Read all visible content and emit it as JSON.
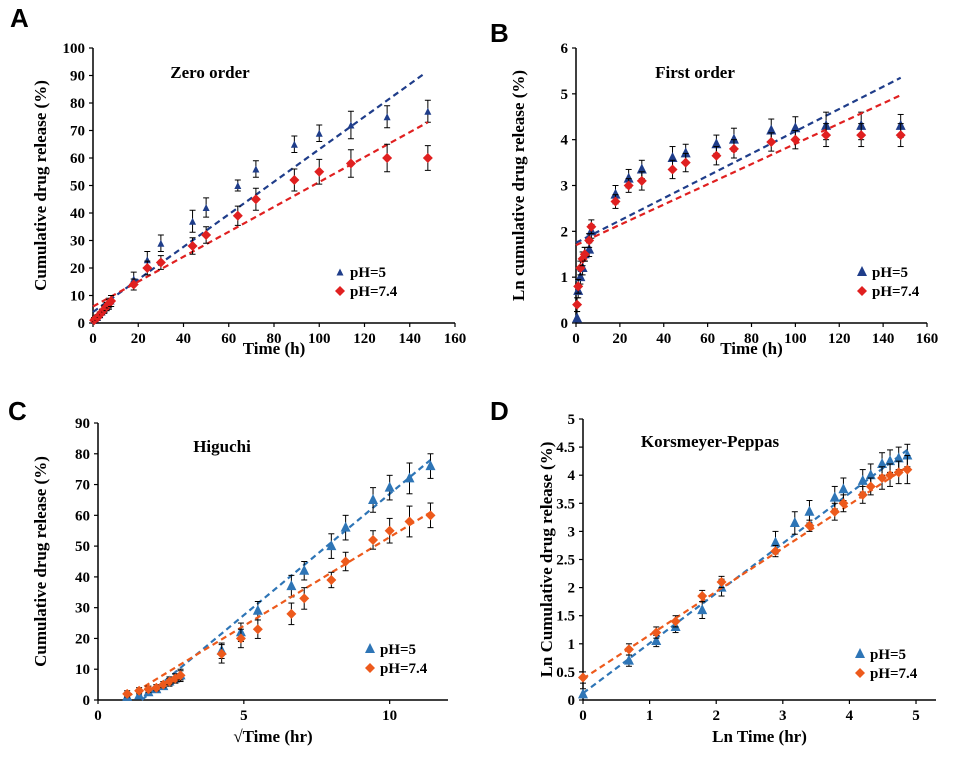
{
  "chart_data": [
    {
      "panel": "A",
      "type": "scatter",
      "title": "Zero order",
      "xlabel": "Time (h)",
      "ylabel": "Cumulative  drug release  (%)",
      "xlim": [
        0,
        160
      ],
      "ylim": [
        0,
        100
      ],
      "xticks": [
        0,
        20,
        40,
        60,
        80,
        100,
        120,
        140,
        160
      ],
      "yticks": [
        0,
        10,
        20,
        30,
        40,
        50,
        60,
        70,
        80,
        90,
        100
      ],
      "legend": "right",
      "series": [
        {
          "name": "pH=5",
          "color": "#1f3d8a",
          "marker": "triangle-small",
          "x": [
            0.5,
            1,
            2,
            3,
            4,
            5,
            6,
            7,
            8,
            18,
            24,
            30,
            44,
            50,
            64,
            72,
            89,
            100,
            114,
            130,
            148
          ],
          "y": [
            1,
            1.5,
            2,
            3,
            4,
            5,
            6,
            7,
            8,
            16,
            23,
            29,
            37,
            42,
            50,
            56,
            65,
            69,
            72,
            75,
            77
          ],
          "err": [
            1,
            1,
            1,
            1,
            1,
            1.5,
            1.5,
            2,
            2,
            2.5,
            3,
            3,
            4,
            3.5,
            2,
            3,
            3,
            3,
            5,
            4,
            4
          ],
          "fit": {
            "x0": 0,
            "y0": 4,
            "x1": 147,
            "y1": 91
          }
        },
        {
          "name": "pH=7.4",
          "color": "#e02020",
          "marker": "diamond",
          "x": [
            0.5,
            1,
            2,
            3,
            4,
            5,
            6,
            7,
            8,
            18,
            24,
            30,
            44,
            50,
            64,
            72,
            89,
            100,
            114,
            130,
            148
          ],
          "y": [
            1,
            1.5,
            2,
            3,
            4,
            5,
            6,
            7,
            8,
            14,
            20,
            22,
            28,
            32,
            39,
            45,
            52,
            55,
            58,
            60,
            60
          ],
          "err": [
            1,
            1,
            1,
            1,
            1,
            1,
            1.5,
            1.5,
            2,
            2,
            2.5,
            2.5,
            3,
            3,
            3.5,
            4,
            4,
            4.5,
            5,
            5,
            4.5
          ],
          "fit": {
            "x0": 0,
            "y0": 6,
            "x1": 148,
            "y1": 73
          }
        }
      ]
    },
    {
      "panel": "B",
      "type": "scatter",
      "title": "First order",
      "xlabel": "Time (h)",
      "ylabel": "Ln cumulative drug  release  (%)",
      "xlim": [
        0,
        160
      ],
      "ylim": [
        0,
        6
      ],
      "xticks": [
        0,
        20,
        40,
        60,
        80,
        100,
        120,
        140,
        160
      ],
      "yticks": [
        0,
        1,
        2,
        3,
        4,
        5,
        6
      ],
      "legend": "right",
      "series": [
        {
          "name": "pH=5",
          "color": "#1f3d8a",
          "marker": "triangle",
          "x": [
            0.5,
            1,
            2,
            3,
            4,
            6,
            7,
            18,
            24,
            30,
            44,
            50,
            64,
            72,
            89,
            100,
            114,
            130,
            148
          ],
          "y": [
            0.1,
            0.7,
            1.0,
            1.2,
            1.5,
            1.6,
            2.0,
            2.8,
            3.15,
            3.35,
            3.6,
            3.7,
            3.9,
            4.0,
            4.2,
            4.25,
            4.3,
            4.3,
            4.3
          ],
          "err": [
            0.15,
            0.15,
            0.15,
            0.15,
            0.15,
            0.15,
            0.15,
            0.2,
            0.2,
            0.2,
            0.25,
            0.2,
            0.2,
            0.25,
            0.25,
            0.25,
            0.3,
            0.3,
            0.25
          ],
          "fit": {
            "x0": 0,
            "y0": 1.75,
            "x1": 148,
            "y1": 5.35
          }
        },
        {
          "name": "pH=7.4",
          "color": "#e02020",
          "marker": "diamond",
          "x": [
            0.5,
            1,
            2,
            3,
            4,
            6,
            7,
            18,
            24,
            30,
            44,
            50,
            64,
            72,
            89,
            100,
            114,
            130,
            148
          ],
          "y": [
            0.4,
            0.8,
            1.2,
            1.4,
            1.5,
            1.8,
            2.1,
            2.65,
            3.0,
            3.1,
            3.35,
            3.5,
            3.65,
            3.8,
            3.95,
            4.0,
            4.1,
            4.1,
            4.1
          ],
          "err": [
            0.15,
            0.15,
            0.15,
            0.15,
            0.15,
            0.15,
            0.15,
            0.15,
            0.15,
            0.2,
            0.2,
            0.2,
            0.2,
            0.2,
            0.2,
            0.2,
            0.25,
            0.25,
            0.25
          ],
          "fit": {
            "x0": 0,
            "y0": 1.7,
            "x1": 148,
            "y1": 4.97
          }
        }
      ]
    },
    {
      "panel": "C",
      "type": "scatter",
      "title": "Higuchi",
      "xlabel": "√Time (hr)",
      "ylabel": "Cumulative drug  release  (%)",
      "xlim": [
        0,
        12
      ],
      "ylim": [
        0,
        90
      ],
      "xticks": [
        0,
        5,
        10
      ],
      "yticks": [
        0,
        10,
        20,
        30,
        40,
        50,
        60,
        70,
        80,
        90
      ],
      "legend": "right",
      "series": [
        {
          "name": "pH=5",
          "color": "#2e75b6",
          "marker": "triangle",
          "x": [
            1.0,
            1.41,
            1.73,
            2.0,
            2.24,
            2.45,
            2.65,
            2.83,
            4.24,
            4.9,
            5.48,
            6.63,
            7.07,
            8.0,
            8.49,
            9.43,
            10.0,
            10.68,
            11.4
          ],
          "y": [
            1,
            1.5,
            2.5,
            3.5,
            4.5,
            6,
            7,
            8,
            16,
            22,
            29,
            37,
            42,
            50,
            56,
            65,
            69,
            72,
            76
          ],
          "err": [
            1,
            1,
            1,
            1,
            1,
            1.5,
            1.5,
            2,
            2.5,
            3,
            3,
            3.5,
            3,
            4,
            4,
            4,
            4,
            5,
            4
          ],
          "fit": {
            "x0": 1.5,
            "y0": 0,
            "x1": 11.4,
            "y1": 78
          }
        },
        {
          "name": "pH=7.4",
          "color": "#ed5a1c",
          "marker": "diamond",
          "x": [
            1.0,
            1.41,
            1.73,
            2.0,
            2.24,
            2.45,
            2.65,
            2.83,
            4.24,
            4.9,
            5.48,
            6.63,
            7.07,
            8.0,
            8.49,
            9.43,
            10.0,
            10.68,
            11.4
          ],
          "y": [
            2,
            3,
            3.5,
            4,
            5,
            6,
            7,
            8,
            15,
            20,
            23,
            28,
            33,
            39,
            45,
            52,
            55,
            58,
            60
          ],
          "err": [
            1,
            1,
            1,
            1,
            1,
            1,
            1.5,
            1.5,
            3,
            3,
            3,
            3.5,
            3.5,
            2.5,
            3,
            3,
            4,
            5,
            4
          ],
          "fit": {
            "x0": 1.0,
            "y0": 1,
            "x1": 11.4,
            "y1": 61
          }
        }
      ]
    },
    {
      "panel": "D",
      "type": "scatter",
      "title": "Korsmeyer-Peppas",
      "xlabel": "Ln Time (hr)",
      "ylabel": "Ln Cumulative drug release (%)",
      "xlim": [
        0,
        5.3
      ],
      "ylim": [
        0,
        5
      ],
      "xticks": [
        0,
        1,
        2,
        3,
        4,
        5
      ],
      "yticks": [
        0,
        0.5,
        1,
        1.5,
        2,
        2.5,
        3,
        3.5,
        4,
        4.5,
        5
      ],
      "legend": "right",
      "series": [
        {
          "name": "pH=5",
          "color": "#2e75b6",
          "marker": "triangle",
          "x": [
            0,
            0.69,
            1.1,
            1.39,
            1.79,
            2.08,
            2.89,
            3.18,
            3.4,
            3.78,
            3.91,
            4.2,
            4.32,
            4.49,
            4.61,
            4.74,
            4.87
          ],
          "y": [
            0.1,
            0.7,
            1.05,
            1.3,
            1.6,
            2.0,
            2.8,
            3.15,
            3.35,
            3.6,
            3.75,
            3.9,
            4.0,
            4.2,
            4.25,
            4.3,
            4.35
          ],
          "err": [
            0.1,
            0.1,
            0.1,
            0.1,
            0.15,
            0.15,
            0.2,
            0.2,
            0.2,
            0.2,
            0.2,
            0.2,
            0.2,
            0.2,
            0.2,
            0.2,
            0.2
          ],
          "fit": {
            "x0": 0,
            "y0": 0.12,
            "x1": 4.87,
            "y1": 4.45
          }
        },
        {
          "name": "pH=7.4",
          "color": "#ed5a1c",
          "marker": "diamond",
          "x": [
            0,
            0.69,
            1.1,
            1.39,
            1.79,
            2.08,
            2.89,
            3.4,
            3.78,
            3.91,
            4.2,
            4.32,
            4.49,
            4.61,
            4.74,
            4.87
          ],
          "y": [
            0.4,
            0.9,
            1.2,
            1.4,
            1.85,
            2.1,
            2.65,
            3.1,
            3.35,
            3.5,
            3.65,
            3.8,
            3.95,
            4.0,
            4.05,
            4.1
          ],
          "err": [
            0.1,
            0.1,
            0.1,
            0.1,
            0.1,
            0.1,
            0.1,
            0.1,
            0.15,
            0.15,
            0.15,
            0.15,
            0.2,
            0.2,
            0.2,
            0.25
          ],
          "fit": {
            "x0": 0,
            "y0": 0.38,
            "x1": 4.87,
            "y1": 4.15
          }
        }
      ]
    }
  ]
}
